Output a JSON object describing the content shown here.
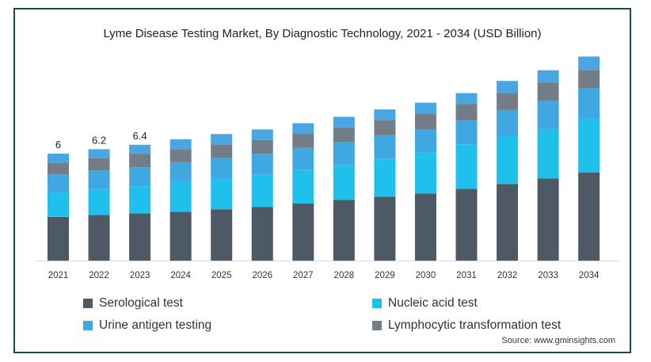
{
  "chart_data": {
    "type": "bar",
    "stacked": true,
    "title": "Lyme Disease Testing Market, By Diagnostic Technology, 2021 - 2034 (USD Billion)",
    "xlabel": "",
    "ylabel": "",
    "categories": [
      "2021",
      "2022",
      "2023",
      "2024",
      "2025",
      "2026",
      "2027",
      "2028",
      "2029",
      "2030",
      "2031",
      "2032",
      "2033",
      "2034"
    ],
    "series": [
      {
        "name": "Serological test",
        "color": "#4d5965",
        "values": [
          2.45,
          2.56,
          2.65,
          2.74,
          2.88,
          3.0,
          3.2,
          3.4,
          3.58,
          3.76,
          4.02,
          4.3,
          4.6,
          4.95
        ]
      },
      {
        "name": "Nucleic acid test",
        "color": "#1fc1ec",
        "values": [
          1.38,
          1.45,
          1.52,
          1.68,
          1.74,
          1.81,
          1.9,
          1.97,
          2.14,
          2.3,
          2.5,
          2.7,
          2.78,
          3.05
        ]
      },
      {
        "name": "Urine antigen testing",
        "color": "#3fa8e2",
        "values": [
          1.0,
          1.04,
          1.07,
          1.1,
          1.14,
          1.18,
          1.22,
          1.28,
          1.31,
          1.28,
          1.34,
          1.45,
          1.6,
          1.66
        ]
      },
      {
        "name": "Lymphocytic transformation test",
        "color": "#737d88",
        "values": [
          0.67,
          0.7,
          0.74,
          0.73,
          0.76,
          0.77,
          0.79,
          0.82,
          0.85,
          0.88,
          0.92,
          0.96,
          1.0,
          1.04
        ]
      },
      {
        "name": "",
        "color": "#4aa6e0",
        "values": [
          0.5,
          0.5,
          0.52,
          0.56,
          0.58,
          0.6,
          0.6,
          0.6,
          0.6,
          0.64,
          0.62,
          0.67,
          0.7,
          0.75
        ]
      }
    ],
    "data_labels": [
      "6",
      "6.2",
      "6.4",
      "",
      "",
      "",
      "",
      "",
      "",
      "",
      "",
      "",
      "",
      ""
    ],
    "ylim": [
      0,
      12.5
    ],
    "grid": false,
    "legend_position": "bottom"
  },
  "source_text": "Source: www.gminsights.com"
}
